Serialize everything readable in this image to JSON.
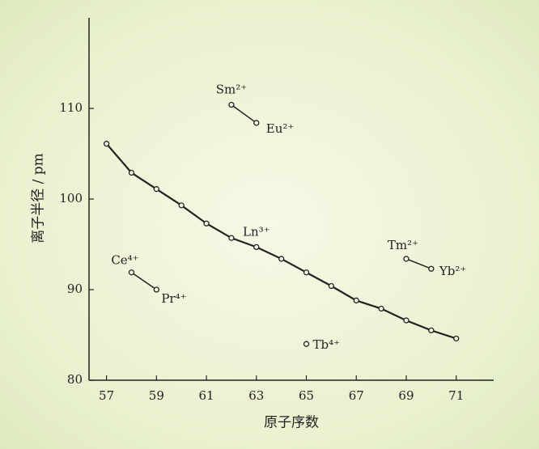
{
  "chart_data": {
    "type": "line",
    "xlabel": "原子序数",
    "ylabel": "离子半径 / pm",
    "xlim": [
      56.3,
      72.5
    ],
    "ylim": [
      80,
      120
    ],
    "xticks": [
      57,
      59,
      61,
      63,
      65,
      67,
      69,
      71
    ],
    "yticks": [
      80,
      90,
      100,
      110
    ],
    "color": "#222222",
    "series": [
      {
        "name": "Ln³⁺",
        "x": [
          57,
          58,
          59,
          60,
          61,
          62,
          63,
          64,
          65,
          66,
          67,
          68,
          69,
          70,
          71
        ],
        "values": [
          106.1,
          102.9,
          101.1,
          99.3,
          97.3,
          95.7,
          94.7,
          93.4,
          91.9,
          90.4,
          88.8,
          87.9,
          86.6,
          85.5,
          84.6
        ]
      },
      {
        "name": "Sm²⁺",
        "x": [
          62
        ],
        "values": [
          110.4
        ]
      },
      {
        "name": "Eu²⁺",
        "x": [
          63
        ],
        "values": [
          108.4
        ]
      },
      {
        "name": "Ce⁴⁺",
        "x": [
          58
        ],
        "values": [
          91.9
        ]
      },
      {
        "name": "Pr⁴⁺",
        "x": [
          59
        ],
        "values": [
          90.0
        ]
      },
      {
        "name": "Tb⁴⁺",
        "x": [
          65
        ],
        "values": [
          84.0
        ]
      },
      {
        "name": "Tm²⁺",
        "x": [
          69
        ],
        "values": [
          93.4
        ]
      },
      {
        "name": "Yb²⁺",
        "x": [
          70
        ],
        "values": [
          92.3
        ]
      }
    ]
  }
}
